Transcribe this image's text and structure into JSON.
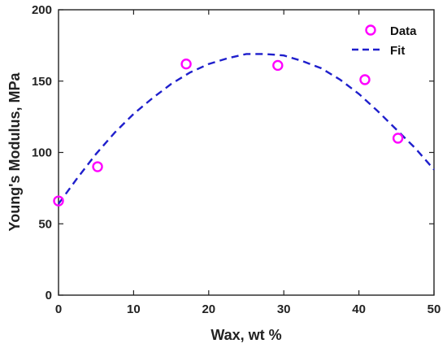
{
  "chart_data": {
    "type": "scatter",
    "xlabel": "Wax, wt %",
    "ylabel": "Young's Modulus, MPa",
    "xlim": [
      0,
      50
    ],
    "ylim": [
      0,
      200
    ],
    "xticks": [
      0,
      10,
      20,
      30,
      40,
      50
    ],
    "yticks": [
      0,
      50,
      100,
      150,
      200
    ],
    "grid": false,
    "legend_position": "top-right",
    "series": [
      {
        "name": "Data",
        "kind": "scatter",
        "marker": "circle",
        "color": "#ff00ff",
        "x": [
          0,
          5.2,
          17,
          29.2,
          40.8,
          45.2
        ],
        "y": [
          66,
          90,
          162,
          161,
          151,
          110
        ]
      },
      {
        "name": "Fit",
        "kind": "line",
        "style": "dashed",
        "color": "#1f1fcc",
        "x": [
          0,
          2.5,
          5,
          7.5,
          10,
          12.5,
          15,
          17.5,
          20,
          22.5,
          25,
          27.5,
          30,
          32.5,
          35,
          37.5,
          40,
          42.5,
          45,
          47.5,
          50
        ],
        "y": [
          64,
          82,
          99,
          114,
          127,
          138,
          148,
          156,
          162,
          166,
          169,
          169,
          168,
          164,
          159,
          151,
          141,
          129,
          116,
          103,
          88
        ]
      }
    ]
  }
}
